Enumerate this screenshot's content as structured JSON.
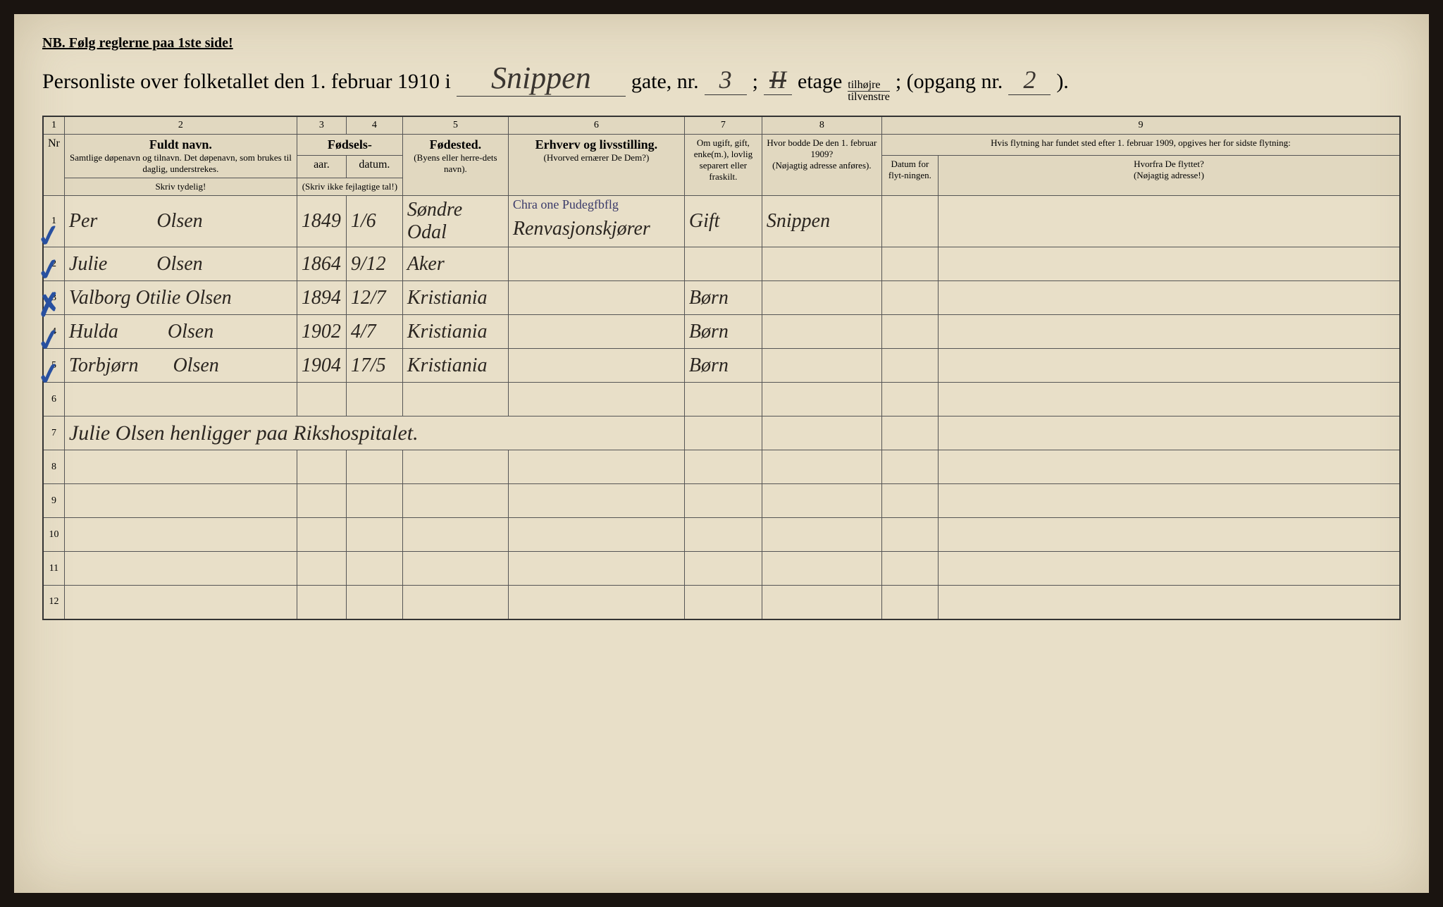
{
  "header": {
    "nb": "NB.  Følg reglerne paa 1ste side!",
    "title_prefix": "Personliste over folketallet den 1. februar 1910 i",
    "street_name": "Snippen",
    "gate_label": "gate, nr.",
    "gate_nr": "3",
    "semicolon": ";",
    "etage_nr": "II",
    "etage_label": "etage",
    "frac_top": "tilhøjre",
    "frac_bot": "tilvenstre",
    "opgang_label": "; (opgang nr.",
    "opgang_nr": "2",
    "closing": ")."
  },
  "columns": {
    "c1": "1",
    "c2": "2",
    "c3": "3",
    "c4": "4",
    "c5": "5",
    "c6": "6",
    "c7": "7",
    "c8": "8",
    "c9": "9",
    "nr": "Nr",
    "name_main": "Fuldt navn.",
    "name_sub": "Samtlige døpenavn og tilnavn. Det døpenavn, som brukes til daglig, understrekes.",
    "fodsels": "Fødsels-",
    "aar": "aar.",
    "datum": "datum.",
    "aar_sub": "(Skriv ikke fejlagtige tal!)",
    "fodested": "Fødested.",
    "fodested_sub": "(Byens eller herre-dets navn).",
    "erhverv": "Erhverv og livsstilling.",
    "erhverv_sub": "(Hvorved ernærer De Dem?)",
    "ugift": "Om ugift, gift, enke(m.), lovlig separert eller fraskilt.",
    "hvor_bodde": "Hvor bodde De den 1. februar 1909?",
    "hvor_bodde_sub": "(Nøjagtig adresse anføres).",
    "flytning": "Hvis flytning har fundet sted efter 1. februar 1909, opgives her for sidste flytning:",
    "datum_flyt": "Datum for flyt-ningen.",
    "hvorfra": "Hvorfra De flyttet?",
    "hvorfra_sub": "(Nøjagtig adresse!)",
    "skriv_tydelig": "Skriv tydelig!"
  },
  "rows": [
    {
      "n": "1",
      "name": "Per            Olsen",
      "aar": "1849",
      "datum": "1/6",
      "fodested": "Søndre Odal",
      "erhverv_annot": "Chra one Pudegfbflg",
      "erhverv": "Renvasjonskjører",
      "status": "Gift",
      "bodde": "Snippen",
      "check": true
    },
    {
      "n": "2",
      "name": "Julie          Olsen",
      "aar": "1864",
      "datum": "9/12",
      "fodested": "Aker",
      "erhverv": "",
      "status": "",
      "bodde": "",
      "check": true
    },
    {
      "n": "3",
      "name": "Valborg Otilie Olsen",
      "aar": "1894",
      "datum": "12/7",
      "fodested": "Kristiania",
      "erhverv": "",
      "status": "Børn",
      "bodde": "",
      "check": true,
      "xmark": true
    },
    {
      "n": "4",
      "name": "Hulda          Olsen",
      "aar": "1902",
      "datum": "4/7",
      "fodested": "Kristiania",
      "erhverv": "",
      "status": "Børn",
      "bodde": "",
      "check": true
    },
    {
      "n": "5",
      "name": "Torbjørn       Olsen",
      "aar": "1904",
      "datum": "17/5",
      "fodested": "Kristiania",
      "erhverv": "",
      "status": "Børn",
      "bodde": "",
      "check": true
    }
  ],
  "note": "Julie Olsen henligger paa Rikshospitalet.",
  "empty_rows": [
    "6",
    "8",
    "9",
    "10",
    "11",
    "12"
  ],
  "note_row_num": "7"
}
